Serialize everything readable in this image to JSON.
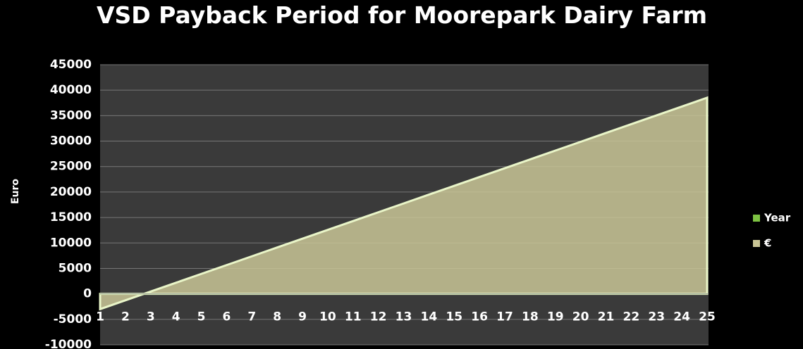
{
  "chart_data": {
    "type": "area",
    "title": "VSD Payback Period for Moorepark Dairy Farm",
    "y_label": "Euro",
    "categories": [
      "1",
      "2",
      "3",
      "4",
      "5",
      "6",
      "7",
      "8",
      "9",
      "10",
      "11",
      "12",
      "13",
      "14",
      "15",
      "16",
      "17",
      "18",
      "19",
      "20",
      "21",
      "22",
      "23",
      "24",
      "25"
    ],
    "series": [
      {
        "name": "Year",
        "color": "#7dc242",
        "values": [
          1,
          2,
          3,
          4,
          5,
          6,
          7,
          8,
          9,
          10,
          11,
          12,
          13,
          14,
          15,
          16,
          17,
          18,
          19,
          20,
          21,
          22,
          23,
          24,
          25
        ]
      },
      {
        "name": "€",
        "color": "#c9c596",
        "values": [
          -3000,
          -1270,
          460,
          2190,
          3920,
          5650,
          7380,
          9110,
          10840,
          12570,
          14300,
          16030,
          17760,
          19490,
          21220,
          22950,
          24680,
          26410,
          28140,
          29870,
          31600,
          33330,
          35060,
          36790,
          38520
        ]
      }
    ],
    "ylim": [
      -10000,
      45000
    ],
    "yticks": [
      -10000,
      -5000,
      0,
      5000,
      10000,
      15000,
      20000,
      25000,
      30000,
      35000,
      40000,
      45000
    ],
    "grid": true,
    "legend": "right"
  }
}
